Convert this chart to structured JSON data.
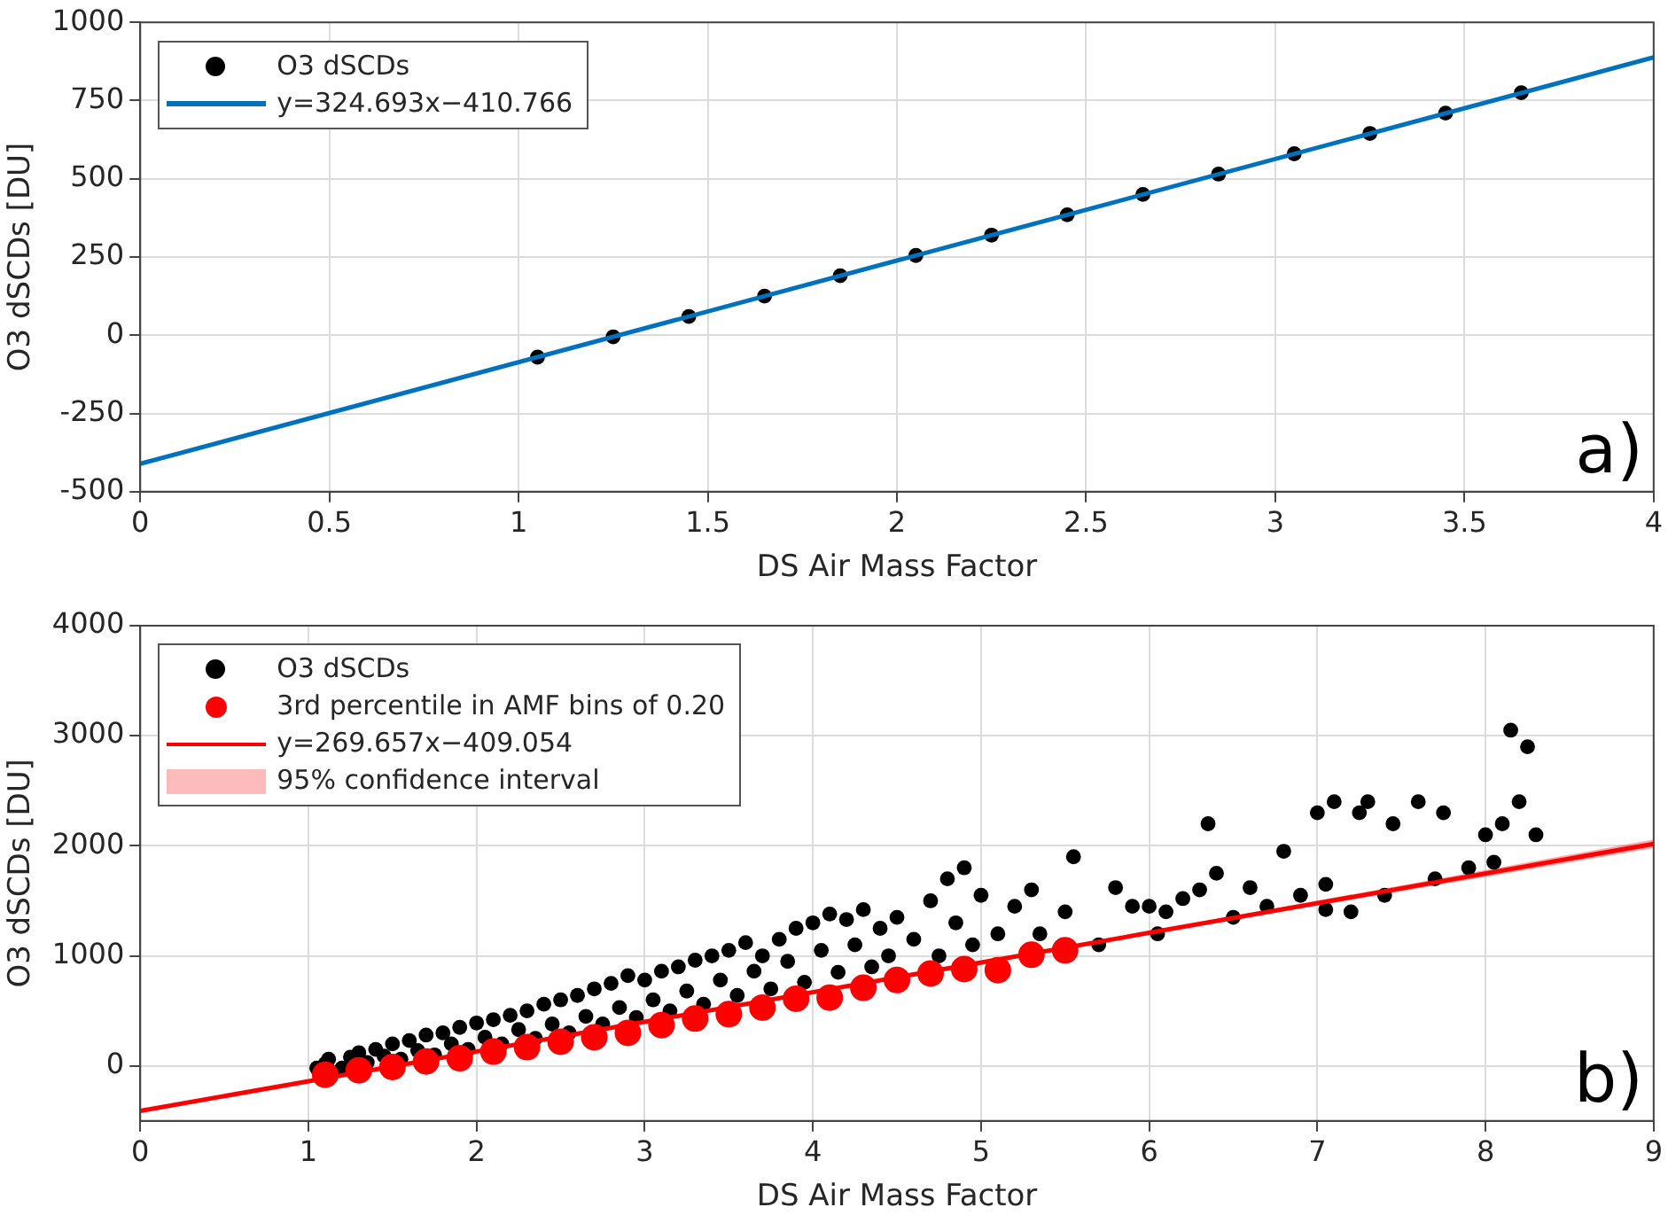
{
  "chart_data": [
    {
      "type": "scatter",
      "xlabel": "DS Air Mass Factor",
      "ylabel": "O3 dSCDs [DU]",
      "xlim": [
        0,
        4
      ],
      "xticks": [
        0,
        0.5,
        1,
        1.5,
        2,
        2.5,
        3,
        3.5,
        4
      ],
      "ylim": [
        -500,
        1000
      ],
      "yticks": [
        -500,
        -250,
        0,
        250,
        500,
        750,
        1000
      ],
      "grid": true,
      "legend": "top left",
      "annotations": [
        "a)"
      ],
      "series": [
        {
          "name": "O3 dSCDs",
          "marker": "circle",
          "color": "#000000",
          "x": [
            1.05,
            1.25,
            1.45,
            1.65,
            1.85,
            2.05,
            2.25,
            2.45,
            2.65,
            2.85,
            3.05,
            3.25,
            3.45,
            3.65
          ],
          "values": [
            -70,
            -5,
            60,
            125,
            190,
            255,
            320,
            385,
            450,
            515,
            580,
            645,
            710,
            775
          ]
        },
        {
          "name": "y=324.693x−410.766",
          "type": "line",
          "marker": "none",
          "color": "#0072bd",
          "x": [
            0,
            4
          ],
          "values": [
            -411,
            888
          ]
        }
      ]
    },
    {
      "type": "scatter",
      "xlabel": "DS Air Mass Factor",
      "ylabel": "O3 dSCDs [DU]",
      "xlim": [
        0,
        9
      ],
      "xticks": [
        0,
        1,
        2,
        3,
        4,
        5,
        6,
        7,
        8,
        9
      ],
      "ylim": [
        -500,
        4000
      ],
      "yticks": [
        0,
        1000,
        2000,
        3000,
        4000
      ],
      "grid": true,
      "legend": "top left",
      "annotations": [
        "b)",
        "95% confidence interval"
      ],
      "series": [
        {
          "name": "O3 dSCDs",
          "marker": "circle",
          "color": "#000000",
          "x": [
            1.05,
            1.1,
            1.12,
            1.2,
            1.25,
            1.3,
            1.35,
            1.4,
            1.45,
            1.5,
            1.55,
            1.6,
            1.65,
            1.7,
            1.75,
            1.8,
            1.85,
            1.9,
            1.95,
            2.0,
            2.05,
            2.1,
            2.15,
            2.2,
            2.25,
            2.3,
            2.35,
            2.4,
            2.45,
            2.5,
            2.55,
            2.6,
            2.65,
            2.7,
            2.75,
            2.8,
            2.85,
            2.9,
            2.95,
            3.0,
            3.05,
            3.1,
            3.15,
            3.2,
            3.25,
            3.3,
            3.35,
            3.4,
            3.45,
            3.5,
            3.55,
            3.6,
            3.65,
            3.7,
            3.75,
            3.8,
            3.85,
            3.9,
            3.95,
            4.0,
            4.05,
            4.1,
            4.15,
            4.2,
            4.25,
            4.3,
            4.35,
            4.4,
            4.45,
            4.5,
            4.6,
            4.7,
            4.75,
            4.8,
            4.85,
            4.9,
            4.95,
            5.0,
            5.1,
            5.2,
            5.3,
            5.35,
            5.5,
            5.55,
            5.7,
            5.8,
            5.9,
            6.0,
            6.05,
            6.1,
            6.2,
            6.3,
            6.35,
            6.4,
            6.5,
            6.6,
            6.7,
            6.8,
            6.9,
            7.0,
            7.05,
            7.05,
            7.1,
            7.2,
            7.25,
            7.3,
            7.4,
            7.45,
            7.6,
            7.7,
            7.75,
            7.9,
            8.0,
            8.05,
            8.1,
            8.15,
            8.2,
            8.25,
            8.3
          ],
          "values": [
            -20,
            20,
            60,
            -20,
            80,
            120,
            30,
            150,
            90,
            200,
            60,
            230,
            140,
            280,
            100,
            300,
            200,
            350,
            150,
            390,
            260,
            420,
            200,
            460,
            330,
            500,
            250,
            560,
            380,
            600,
            300,
            640,
            450,
            700,
            380,
            750,
            530,
            820,
            440,
            780,
            600,
            860,
            500,
            900,
            680,
            960,
            560,
            1000,
            780,
            1050,
            640,
            1120,
            860,
            1000,
            700,
            1150,
            950,
            1250,
            760,
            1300,
            1050,
            1380,
            850,
            1330,
            1100,
            1420,
            900,
            1250,
            1000,
            1350,
            1150,
            1500,
            1000,
            1700,
            1300,
            1800,
            1100,
            1550,
            1200,
            1450,
            1600,
            1200,
            1400,
            1900,
            1100,
            1620,
            1450,
            1450,
            1200,
            1400,
            1520,
            1600,
            2200,
            1750,
            1350,
            1620,
            1450,
            1950,
            1550,
            2300,
            1650,
            1420,
            2400,
            1400,
            2300,
            2400,
            1550,
            2200,
            2400,
            1700,
            2300,
            1800,
            2100,
            1850,
            2200,
            3050,
            2400,
            2900,
            2100
          ]
        },
        {
          "name": "3rd percentile in AMF bins of 0.20",
          "marker": "circle",
          "color": "#ff0000",
          "x": [
            1.1,
            1.3,
            1.5,
            1.7,
            1.9,
            2.1,
            2.3,
            2.5,
            2.7,
            2.9,
            3.1,
            3.3,
            3.5,
            3.7,
            3.9,
            4.1,
            4.3,
            4.5,
            4.7,
            4.9,
            5.1,
            5.3,
            5.5
          ],
          "values": [
            -80,
            -40,
            -10,
            40,
            70,
            130,
            170,
            220,
            260,
            300,
            370,
            430,
            470,
            530,
            610,
            620,
            710,
            780,
            840,
            880,
            870,
            1010,
            1050
          ]
        },
        {
          "name": "y=269.657x−409.054",
          "type": "line",
          "marker": "none",
          "color": "#ff0000",
          "x": [
            0,
            3,
            6,
            9
          ],
          "values": [
            -409,
            400,
            1209,
            2018
          ],
          "lower": [
            -424,
            395,
            1195,
            1978
          ],
          "upper": [
            -394,
            405,
            1223,
            2058
          ]
        }
      ]
    }
  ]
}
